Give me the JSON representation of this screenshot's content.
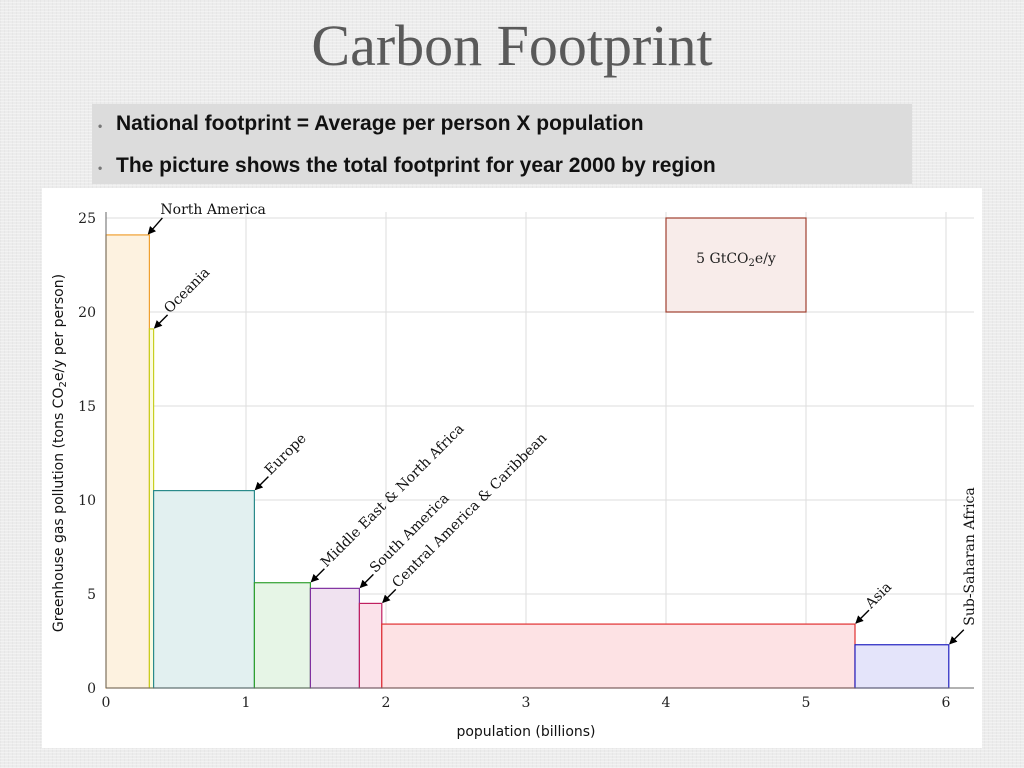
{
  "slide": {
    "title": "Carbon Footprint",
    "bullets": [
      "National footprint = Average per person X population",
      "The picture shows the total footprint for year 2000 by region"
    ]
  },
  "chart_data": {
    "type": "bar",
    "subtype": "variable-width",
    "xlabel": "population (billions)",
    "ylabel_parts": [
      "Greenhouse gas pollution (tons CO",
      "2",
      "e/y per person)"
    ],
    "xlim": [
      0,
      6.2
    ],
    "ylim": [
      0,
      25
    ],
    "xticks": [
      "0",
      "1",
      "2",
      "3",
      "4",
      "5",
      "6"
    ],
    "yticks": [
      "0",
      "5",
      "10",
      "15",
      "20",
      "25"
    ],
    "grid": true,
    "regions": [
      {
        "name": "North America",
        "population": 0.31,
        "per_person": 24.1,
        "fill": "#fdf2e0",
        "stroke": "#f0a030"
      },
      {
        "name": "Oceania",
        "population": 0.03,
        "per_person": 19.1,
        "fill": "#fbfbe0",
        "stroke": "#c8cf20"
      },
      {
        "name": "Europe",
        "population": 0.72,
        "per_person": 10.5,
        "fill": "#e2f0f0",
        "stroke": "#2a8a8a"
      },
      {
        "name": "Middle East & North Africa",
        "population": 0.4,
        "per_person": 5.6,
        "fill": "#e6f5e6",
        "stroke": "#30a030"
      },
      {
        "name": "South America",
        "population": 0.35,
        "per_person": 5.3,
        "fill": "#f0e2f0",
        "stroke": "#8030a0"
      },
      {
        "name": "Central America & Caribbean",
        "population": 0.16,
        "per_person": 4.5,
        "fill": "#fbe2ea",
        "stroke": "#c02060"
      },
      {
        "name": "Asia",
        "population": 3.38,
        "per_person": 3.4,
        "fill": "#fde2e4",
        "stroke": "#e03030"
      },
      {
        "name": "Sub-Saharan Africa",
        "population": 0.67,
        "per_person": 2.3,
        "fill": "#e4e4fa",
        "stroke": "#2020c0"
      }
    ],
    "scale_box": {
      "label_parts": [
        "5 GtCO",
        "2",
        "e/y"
      ],
      "x": [
        4,
        5
      ],
      "y": [
        20,
        25
      ],
      "fill": "#f8ecea",
      "stroke": "#a04030"
    }
  }
}
